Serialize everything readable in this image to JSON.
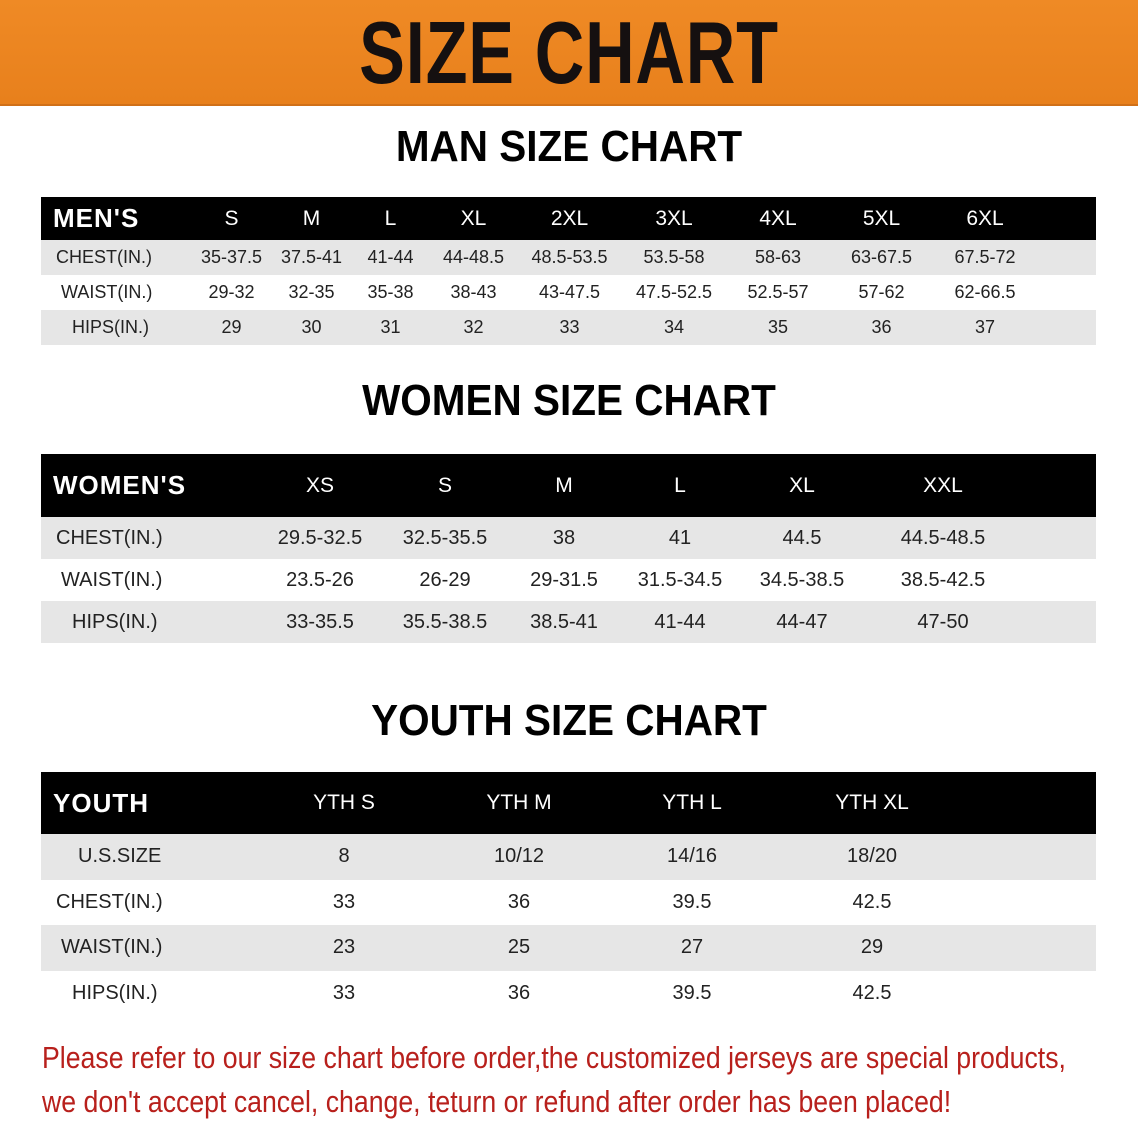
{
  "banner_title": "SIZE CHART",
  "colors": {
    "banner": "#e8801c",
    "header_row": "#000000",
    "stripe": "#e6e6e6",
    "notice": "#b8201c"
  },
  "chart_data": [
    {
      "type": "table",
      "title": "MAN SIZE CHART",
      "header_label": "MEN'S",
      "columns": [
        "S",
        "M",
        "L",
        "XL",
        "2XL",
        "3XL",
        "4XL",
        "5XL",
        "6XL"
      ],
      "rows": [
        {
          "label": "CHEST(IN.)",
          "values": [
            "35-37.5",
            "37.5-41",
            "41-44",
            "44-48.5",
            "48.5-53.5",
            "53.5-58",
            "58-63",
            "63-67.5",
            "67.5-72"
          ]
        },
        {
          "label": "WAIST(IN.)",
          "values": [
            "29-32",
            "32-35",
            "35-38",
            "38-43",
            "43-47.5",
            "47.5-52.5",
            "52.5-57",
            "57-62",
            "62-66.5"
          ]
        },
        {
          "label": "HIPS(IN.)",
          "values": [
            "29",
            "30",
            "31",
            "32",
            "33",
            "34",
            "35",
            "36",
            "37"
          ]
        }
      ]
    },
    {
      "type": "table",
      "title": "WOMEN SIZE CHART",
      "header_label": "WOMEN'S",
      "columns": [
        "XS",
        "S",
        "M",
        "L",
        "XL",
        "XXL"
      ],
      "rows": [
        {
          "label": "CHEST(IN.)",
          "values": [
            "29.5-32.5",
            "32.5-35.5",
            "38",
            "41",
            "44.5",
            "44.5-48.5"
          ]
        },
        {
          "label": "WAIST(IN.)",
          "values": [
            "23.5-26",
            "26-29",
            "29-31.5",
            "31.5-34.5",
            "34.5-38.5",
            "38.5-42.5"
          ]
        },
        {
          "label": "HIPS(IN.)",
          "values": [
            "33-35.5",
            "35.5-38.5",
            "38.5-41",
            "41-44",
            "44-47",
            "47-50"
          ]
        }
      ]
    },
    {
      "type": "table",
      "title": "YOUTH SIZE CHART",
      "header_label": "YOUTH",
      "columns": [
        "YTH S",
        "YTH M",
        "YTH L",
        "YTH XL"
      ],
      "rows": [
        {
          "label": "U.S.SIZE",
          "values": [
            "8",
            "10/12",
            "14/16",
            "18/20"
          ]
        },
        {
          "label": "CHEST(IN.)",
          "values": [
            "33",
            "36",
            "39.5",
            "42.5"
          ]
        },
        {
          "label": "WAIST(IN.)",
          "values": [
            "23",
            "25",
            "27",
            "29"
          ]
        },
        {
          "label": "HIPS(IN.)",
          "values": [
            "33",
            "36",
            "39.5",
            "42.5"
          ]
        }
      ]
    }
  ],
  "notice": {
    "line1": "Please refer to our size chart before order,the customized jerseys are special products,",
    "line2": "we don't accept cancel, change, teturn or refund after order has been placed!"
  }
}
